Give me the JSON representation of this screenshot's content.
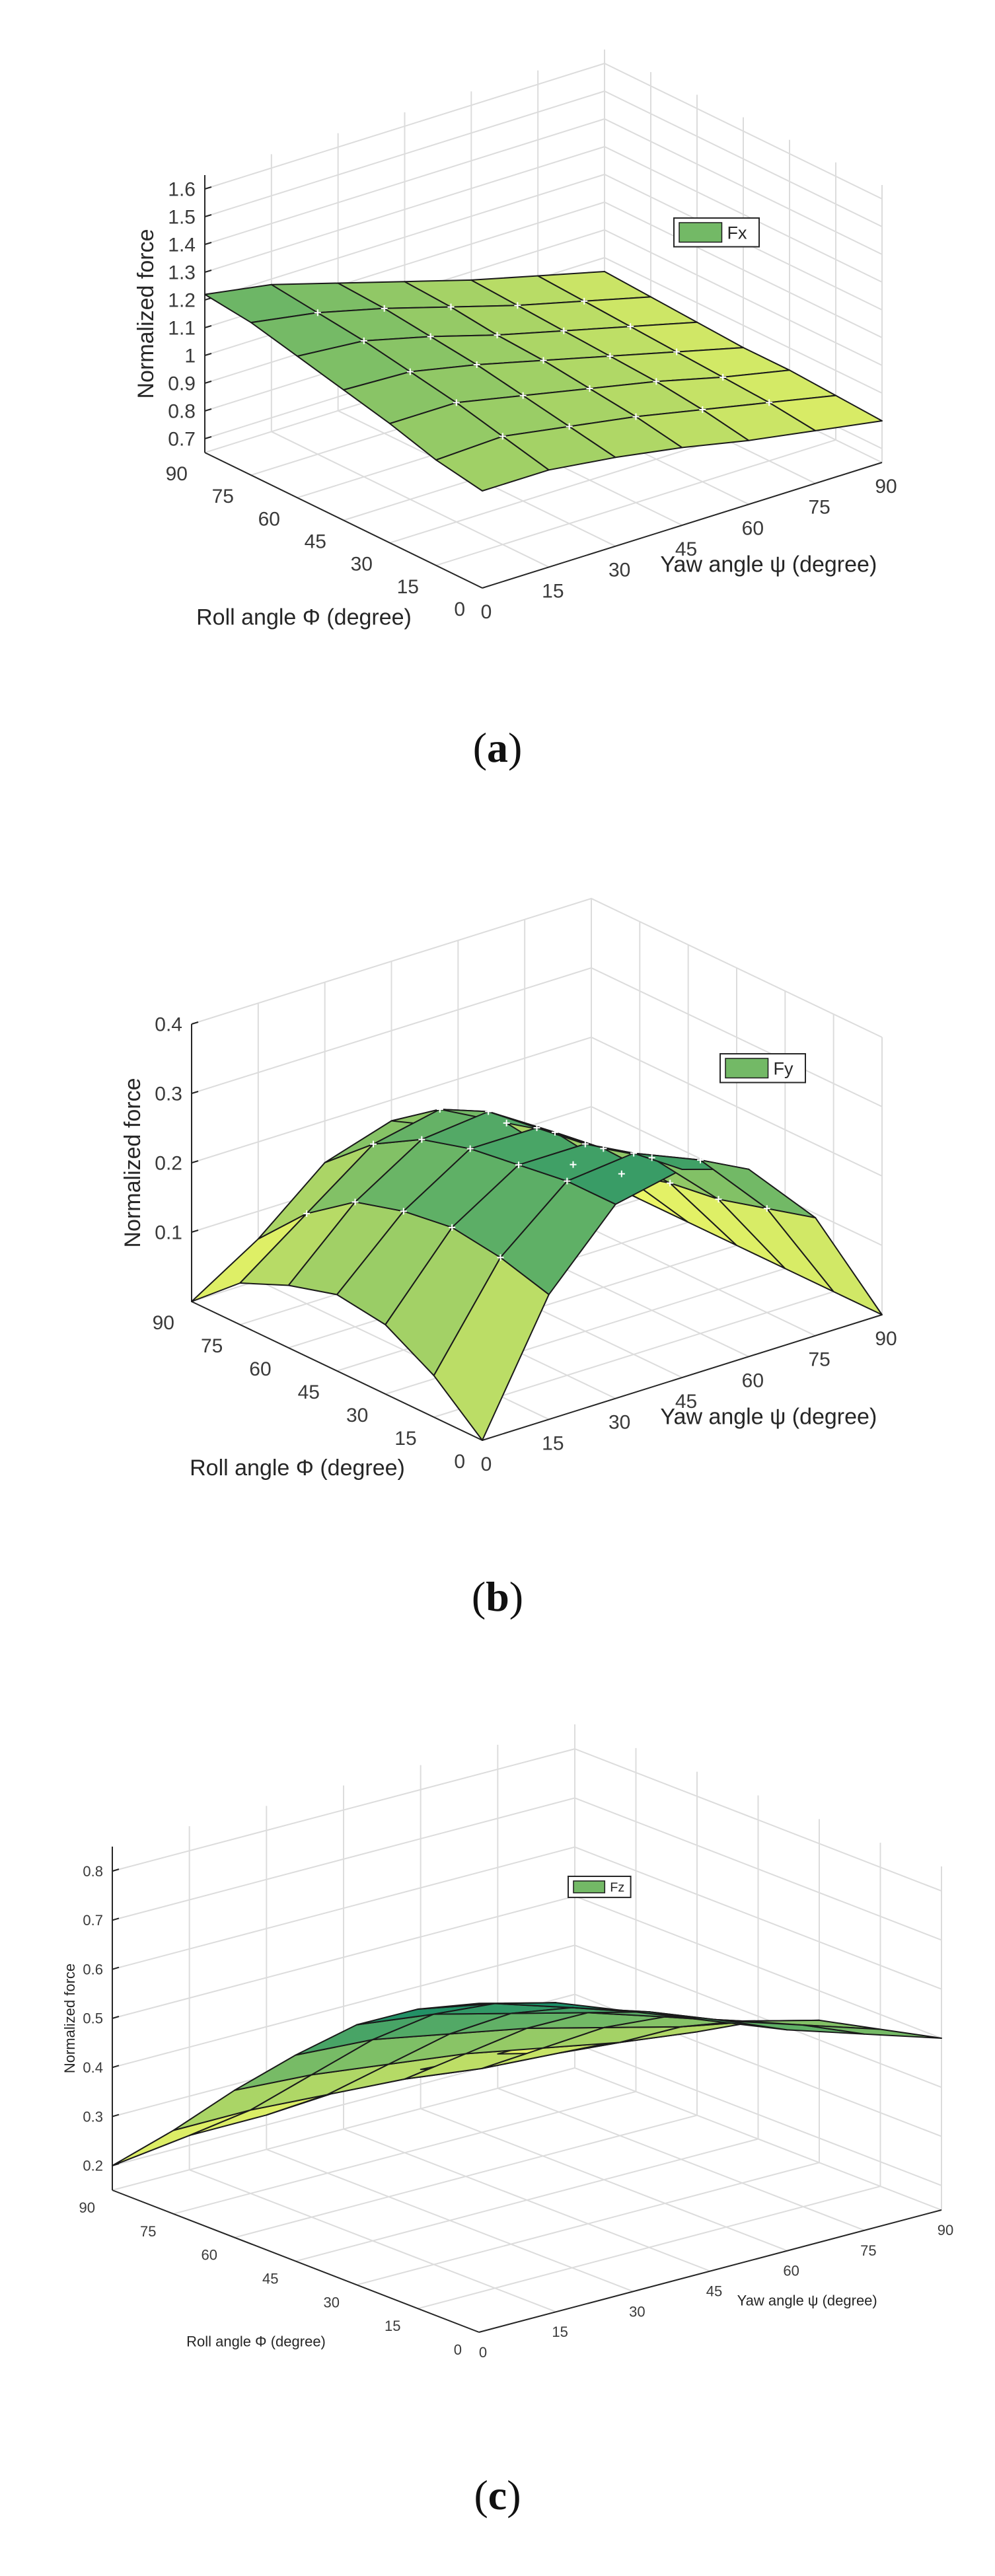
{
  "chart_data": [
    {
      "type": "surface",
      "panel": "a",
      "caption_letter": "a",
      "zlabel": "Normalized force",
      "xlabel": "Yaw angle ψ (degree)",
      "ylabel": "Roll angle Φ (degree)",
      "legend": [
        "Fx"
      ],
      "legend_position": "top-right",
      "grid": true,
      "yaw": [
        0,
        15,
        30,
        45,
        60,
        75,
        90
      ],
      "roll": [
        0,
        15,
        30,
        45,
        60,
        75,
        90
      ],
      "zlim": [
        0.65,
        1.65
      ],
      "zticks": [
        "0.7",
        "0.8",
        "0.9",
        "1",
        "1.1",
        "1.2",
        "1.3",
        "1.4",
        "1.5",
        "1.6"
      ],
      "xticks": [
        "0",
        "15",
        "30",
        "45",
        "60",
        "75",
        "90"
      ],
      "yticks": [
        "0",
        "15",
        "30",
        "45",
        "60",
        "75",
        "90"
      ],
      "z": [
        [
          1.0,
          1.0,
          0.97,
          0.93,
          0.88,
          0.84,
          0.8
        ],
        [
          1.03,
          1.04,
          1.0,
          0.96,
          0.91,
          0.86,
          0.81
        ],
        [
          1.08,
          1.08,
          1.03,
          0.98,
          0.93,
          0.87,
          0.82
        ],
        [
          1.12,
          1.11,
          1.06,
          1.0,
          0.94,
          0.88,
          0.82
        ],
        [
          1.16,
          1.14,
          1.08,
          1.01,
          0.95,
          0.89,
          0.83
        ],
        [
          1.2,
          1.16,
          1.1,
          1.03,
          0.96,
          0.9,
          0.84
        ],
        [
          1.22,
          1.18,
          1.11,
          1.04,
          0.97,
          0.91,
          0.85
        ]
      ]
    },
    {
      "type": "surface",
      "panel": "b",
      "caption_letter": "b",
      "zlabel": "Normalized force",
      "xlabel": "Yaw angle ψ (degree)",
      "ylabel": "Roll angle Φ (degree)",
      "legend": [
        "Fy"
      ],
      "legend_position": "top-right",
      "grid": true,
      "yaw": [
        0,
        15,
        30,
        45,
        60,
        75,
        90
      ],
      "roll": [
        0,
        15,
        30,
        45,
        60,
        75,
        90
      ],
      "zlim": [
        0,
        0.4
      ],
      "zticks": [
        "0.1",
        "0.2",
        "0.3",
        "0.4"
      ],
      "xticks": [
        "0",
        "15",
        "30",
        "45",
        "60",
        "75",
        "90"
      ],
      "yticks": [
        "0",
        "15",
        "30",
        "45",
        "60",
        "75",
        "90"
      ],
      "z": [
        [
          0.0,
          0.18,
          0.28,
          0.3,
          0.27,
          0.17,
          0.0
        ],
        [
          0.06,
          0.2,
          0.28,
          0.29,
          0.25,
          0.15,
          0.0
        ],
        [
          0.1,
          0.21,
          0.27,
          0.27,
          0.22,
          0.13,
          0.0
        ],
        [
          0.11,
          0.2,
          0.26,
          0.26,
          0.2,
          0.12,
          0.0
        ],
        [
          0.09,
          0.18,
          0.24,
          0.25,
          0.19,
          0.1,
          0.0
        ],
        [
          0.06,
          0.13,
          0.2,
          0.22,
          0.17,
          0.08,
          0.0
        ],
        [
          0.0,
          0.06,
          0.14,
          0.17,
          0.13,
          0.06,
          0.0
        ]
      ]
    },
    {
      "type": "surface",
      "panel": "c",
      "caption_letter": "c",
      "zlabel": "Normalized force",
      "xlabel": "Yaw angle ψ (degree)",
      "ylabel": "Roll angle Φ (degree)",
      "legend": [
        "Fz"
      ],
      "legend_position": "top-right",
      "grid": true,
      "yaw": [
        0,
        15,
        30,
        45,
        60,
        75,
        90
      ],
      "roll": [
        0,
        15,
        30,
        45,
        60,
        75,
        90
      ],
      "zlim": [
        0.15,
        0.85
      ],
      "zticks": [
        "0.2",
        "0.3",
        "0.4",
        "0.5",
        "0.6",
        "0.7",
        "0.8"
      ],
      "xticks": [
        "0",
        "15",
        "30",
        "45",
        "60",
        "75",
        "90"
      ],
      "yticks": [
        "0",
        "15",
        "30",
        "45",
        "60",
        "75",
        "90"
      ],
      "z": [
        [
          0.82,
          0.78,
          0.72,
          0.66,
          0.6,
          0.55,
          0.5
        ],
        [
          0.76,
          0.73,
          0.68,
          0.63,
          0.57,
          0.52,
          0.47
        ],
        [
          0.68,
          0.66,
          0.62,
          0.58,
          0.53,
          0.48,
          0.44
        ],
        [
          0.57,
          0.56,
          0.53,
          0.5,
          0.46,
          0.42,
          0.39
        ],
        [
          0.45,
          0.44,
          0.42,
          0.4,
          0.37,
          0.34,
          0.32
        ],
        [
          0.32,
          0.32,
          0.31,
          0.3,
          0.28,
          0.27,
          0.26
        ],
        [
          0.2,
          0.22,
          0.22,
          0.23,
          0.23,
          0.22,
          0.22
        ]
      ]
    }
  ]
}
